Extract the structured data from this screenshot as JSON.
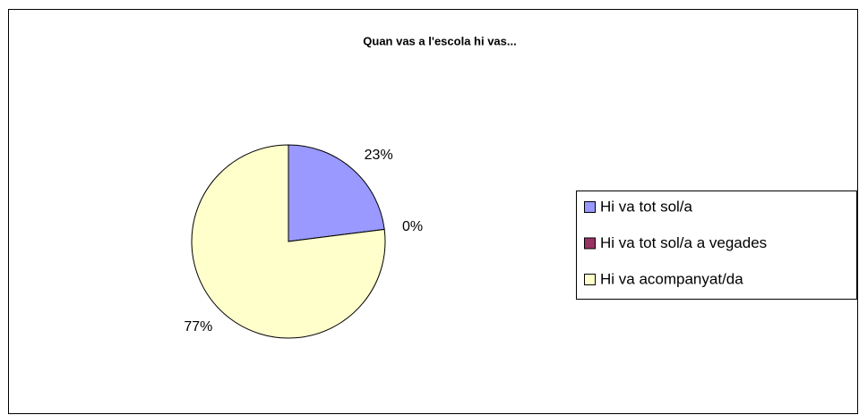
{
  "chart_data": {
    "type": "pie",
    "title": "Quan vas a l'escola hi vas...",
    "categories": [
      "Hi va tot sol/a",
      "Hi va tot sol/a a vegades",
      "Hi va acompanyat/da"
    ],
    "values": [
      23,
      0,
      77
    ],
    "value_labels": [
      "23%",
      "0%",
      "77%"
    ],
    "colors": [
      "#9999ff",
      "#993366",
      "#ffffcc"
    ],
    "legend": "right"
  }
}
